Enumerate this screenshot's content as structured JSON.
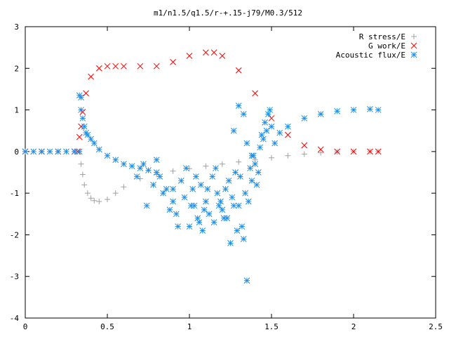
{
  "chart_data": {
    "type": "scatter",
    "title": "m1/n1.5/q1.5/r-+.15-j79/M0.3/512",
    "xlabel": "",
    "ylabel": "",
    "xlim": [
      0,
      2.5
    ],
    "ylim": [
      -4,
      3
    ],
    "xticks": [
      0,
      0.5,
      1,
      1.5,
      2,
      2.5
    ],
    "yticks": [
      -4,
      -3,
      -2,
      -1,
      0,
      1,
      2,
      3
    ],
    "xtick_labels": [
      "0",
      "0.5",
      "1",
      "1.5",
      "2",
      "2.5"
    ],
    "ytick_labels": [
      "-4",
      "-3",
      "-2",
      "-1",
      "0",
      "1",
      "2",
      "3"
    ],
    "grid": false,
    "legend_position": "top-right",
    "series": [
      {
        "name": "R stress/E",
        "marker": "plus",
        "color": "#a0a0a0",
        "x": [
          0.0,
          0.1,
          0.2,
          0.3,
          0.33,
          0.34,
          0.35,
          0.36,
          0.38,
          0.4,
          0.42,
          0.45,
          0.5,
          0.55,
          0.6,
          0.7,
          0.8,
          0.9,
          1.0,
          1.1,
          1.2,
          1.3,
          1.4,
          1.5,
          1.6,
          1.7,
          1.8,
          1.9,
          2.0,
          2.1,
          2.15
        ],
        "y": [
          0.0,
          0.0,
          0.0,
          0.0,
          0.0,
          -0.3,
          -0.55,
          -0.8,
          -1.0,
          -1.12,
          -1.18,
          -1.2,
          -1.15,
          -1.0,
          -0.85,
          -0.65,
          -0.55,
          -0.47,
          -0.41,
          -0.35,
          -0.3,
          -0.25,
          -0.2,
          -0.15,
          -0.1,
          -0.06,
          -0.03,
          -0.01,
          0.0,
          0.0,
          0.0
        ]
      },
      {
        "name": "G work/E",
        "marker": "cross",
        "color": "#ff0000",
        "x": [
          0.0,
          0.1,
          0.2,
          0.3,
          0.32,
          0.33,
          0.34,
          0.35,
          0.37,
          0.4,
          0.45,
          0.5,
          0.55,
          0.6,
          0.7,
          0.8,
          0.9,
          1.0,
          1.1,
          1.15,
          1.2,
          1.3,
          1.4,
          1.5,
          1.6,
          1.7,
          1.8,
          1.9,
          2.0,
          2.1,
          2.15
        ],
        "y": [
          0.0,
          0.0,
          0.0,
          0.0,
          0.0,
          0.35,
          0.6,
          0.95,
          1.4,
          1.8,
          2.0,
          2.05,
          2.05,
          2.05,
          2.05,
          2.05,
          2.15,
          2.3,
          2.38,
          2.38,
          2.3,
          1.95,
          1.4,
          0.8,
          0.4,
          0.15,
          0.05,
          0.0,
          0.0,
          0.0,
          0.0
        ]
      },
      {
        "name": "Acoustic flux/E",
        "marker": "star",
        "color": "#1f8fe8",
        "x": [
          0.0,
          0.05,
          0.1,
          0.15,
          0.2,
          0.25,
          0.3,
          0.33,
          0.33,
          0.34,
          0.34,
          0.35,
          0.36,
          0.37,
          0.38,
          0.4,
          0.42,
          0.45,
          0.5,
          0.55,
          0.6,
          0.65,
          0.7,
          0.75,
          0.8,
          1.55,
          1.6,
          1.7,
          1.8,
          1.9,
          2.0,
          2.1,
          2.15,
          0.72,
          0.78,
          0.82,
          0.86,
          0.88,
          0.9,
          0.92,
          0.95,
          0.97,
          1.0,
          1.02,
          1.03,
          1.05,
          1.07,
          1.08,
          1.1,
          1.12,
          1.14,
          1.15,
          1.17,
          1.18,
          1.2,
          1.22,
          1.23,
          1.25,
          1.26,
          1.28,
          1.3,
          1.32,
          1.33,
          1.35,
          1.36,
          1.38,
          1.4,
          1.42,
          1.43,
          1.45,
          1.47,
          1.48,
          1.5,
          1.52,
          0.68,
          0.74,
          0.8,
          0.84,
          0.9,
          0.93,
          0.98,
          1.01,
          1.04,
          1.06,
          1.09,
          1.11,
          1.16,
          1.19,
          1.21,
          1.24,
          1.27,
          1.29,
          1.31,
          1.34,
          1.37,
          1.39,
          1.41,
          1.44,
          1.46,
          1.49,
          1.35,
          1.33,
          1.27,
          1.3,
          1.38
        ],
        "y": [
          0.0,
          0.0,
          0.0,
          0.0,
          0.0,
          0.0,
          0.0,
          0.0,
          1.35,
          1.3,
          1.0,
          0.8,
          0.6,
          0.45,
          0.4,
          0.3,
          0.2,
          0.05,
          -0.1,
          -0.2,
          -0.3,
          -0.35,
          -0.4,
          -0.45,
          -0.5,
          0.45,
          0.6,
          0.8,
          0.9,
          0.97,
          1.0,
          1.02,
          1.0,
          -0.3,
          -0.8,
          -0.6,
          -0.9,
          -1.4,
          -1.2,
          -1.5,
          -0.7,
          -1.1,
          -1.8,
          -0.9,
          -1.3,
          -1.6,
          -0.8,
          -1.9,
          -1.2,
          -1.5,
          -0.6,
          -1.7,
          -1.0,
          -1.3,
          -1.4,
          -0.9,
          -1.6,
          -2.2,
          -1.1,
          -0.5,
          -1.3,
          -1.8,
          -2.1,
          -3.1,
          -1.2,
          -0.7,
          -0.3,
          -0.5,
          0.1,
          0.3,
          0.5,
          0.9,
          0.6,
          0.2,
          -0.6,
          -1.3,
          -0.2,
          -1.0,
          -0.9,
          -1.8,
          -0.4,
          -1.3,
          -0.6,
          -1.7,
          -1.4,
          -0.9,
          -0.4,
          -1.2,
          -1.6,
          -0.7,
          -1.3,
          -1.9,
          -0.6,
          -1.0,
          -0.4,
          -0.1,
          -0.8,
          0.4,
          0.7,
          1.0,
          0.2,
          0.9,
          0.5,
          1.1,
          -0.1
        ]
      }
    ]
  }
}
